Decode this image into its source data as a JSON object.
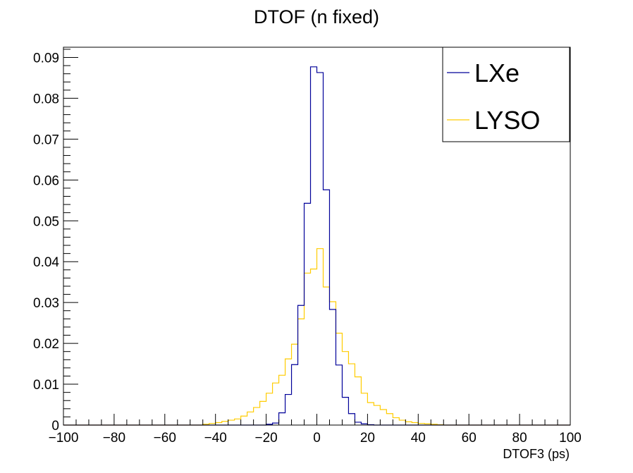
{
  "chart_data": {
    "type": "line",
    "title": "DTOF (n fixed)",
    "xlabel": "DTOF3 (ps)",
    "ylabel": "",
    "xlim": [
      -100,
      100
    ],
    "ylim": [
      0,
      0.0925
    ],
    "grid": false,
    "legend_placement": "top-right",
    "x_ticks": [
      -100,
      -80,
      -60,
      -40,
      -20,
      0,
      20,
      40,
      60,
      80,
      100
    ],
    "x_tick_labels": [
      "−100",
      "−80",
      "−60",
      "−40",
      "−20",
      "0",
      "20",
      "40",
      "60",
      "80",
      "100"
    ],
    "y_ticks": [
      0,
      0.01,
      0.02,
      0.03,
      0.04,
      0.05,
      0.06,
      0.07,
      0.08,
      0.09
    ],
    "y_tick_labels": [
      "0",
      "0.01",
      "0.02",
      "0.03",
      "0.04",
      "0.05",
      "0.06",
      "0.07",
      "0.08",
      "0.09"
    ],
    "bin_width": 2.5,
    "series": [
      {
        "name": "LXe",
        "color": "#000099",
        "bins": [
          {
            "x0": -20,
            "y": 0.0002
          },
          {
            "x0": -17.5,
            "y": 0.0005
          },
          {
            "x0": -15,
            "y": 0.003
          },
          {
            "x0": -12.5,
            "y": 0.0075
          },
          {
            "x0": -10,
            "y": 0.0148
          },
          {
            "x0": -7.5,
            "y": 0.0293
          },
          {
            "x0": -5,
            "y": 0.0543
          },
          {
            "x0": -2.5,
            "y": 0.0877
          },
          {
            "x0": 0,
            "y": 0.0863
          },
          {
            "x0": 2.5,
            "y": 0.0576
          },
          {
            "x0": 5,
            "y": 0.0283
          },
          {
            "x0": 7.5,
            "y": 0.0147
          },
          {
            "x0": 10,
            "y": 0.0068
          },
          {
            "x0": 12.5,
            "y": 0.0028
          },
          {
            "x0": 15,
            "y": 0.0007
          },
          {
            "x0": 17.5,
            "y": 0.0003
          },
          {
            "x0": 20,
            "y": 0.0001
          }
        ]
      },
      {
        "name": "LYSO",
        "color": "#ffcc00",
        "bins": [
          {
            "x0": -45,
            "y": 0.0002
          },
          {
            "x0": -42.5,
            "y": 0.0004
          },
          {
            "x0": -40,
            "y": 0.0006
          },
          {
            "x0": -37.5,
            "y": 0.0009
          },
          {
            "x0": -35,
            "y": 0.0012
          },
          {
            "x0": -32.5,
            "y": 0.0015
          },
          {
            "x0": -30,
            "y": 0.0022
          },
          {
            "x0": -27.5,
            "y": 0.0032
          },
          {
            "x0": -25,
            "y": 0.0043
          },
          {
            "x0": -22.5,
            "y": 0.0058
          },
          {
            "x0": -20,
            "y": 0.0078
          },
          {
            "x0": -17.5,
            "y": 0.0103
          },
          {
            "x0": -15,
            "y": 0.0122
          },
          {
            "x0": -12.5,
            "y": 0.0162
          },
          {
            "x0": -10,
            "y": 0.0198
          },
          {
            "x0": -7.5,
            "y": 0.026
          },
          {
            "x0": -5,
            "y": 0.0372
          },
          {
            "x0": -2.5,
            "y": 0.0382
          },
          {
            "x0": 0,
            "y": 0.0432
          },
          {
            "x0": 2.5,
            "y": 0.0338
          },
          {
            "x0": 5,
            "y": 0.0302
          },
          {
            "x0": 7.5,
            "y": 0.0225
          },
          {
            "x0": 10,
            "y": 0.018
          },
          {
            "x0": 12.5,
            "y": 0.015
          },
          {
            "x0": 15,
            "y": 0.0118
          },
          {
            "x0": 17.5,
            "y": 0.0078
          },
          {
            "x0": 20,
            "y": 0.0055
          },
          {
            "x0": 22.5,
            "y": 0.0048
          },
          {
            "x0": 25,
            "y": 0.0038
          },
          {
            "x0": 27.5,
            "y": 0.0028
          },
          {
            "x0": 30,
            "y": 0.0018
          },
          {
            "x0": 32.5,
            "y": 0.0012
          },
          {
            "x0": 35,
            "y": 0.0008
          },
          {
            "x0": 37.5,
            "y": 0.0006
          },
          {
            "x0": 40,
            "y": 0.0004
          },
          {
            "x0": 42.5,
            "y": 0.0003
          },
          {
            "x0": 45,
            "y": 0.0002
          },
          {
            "x0": 47.5,
            "y": 0.0001
          }
        ]
      }
    ]
  }
}
